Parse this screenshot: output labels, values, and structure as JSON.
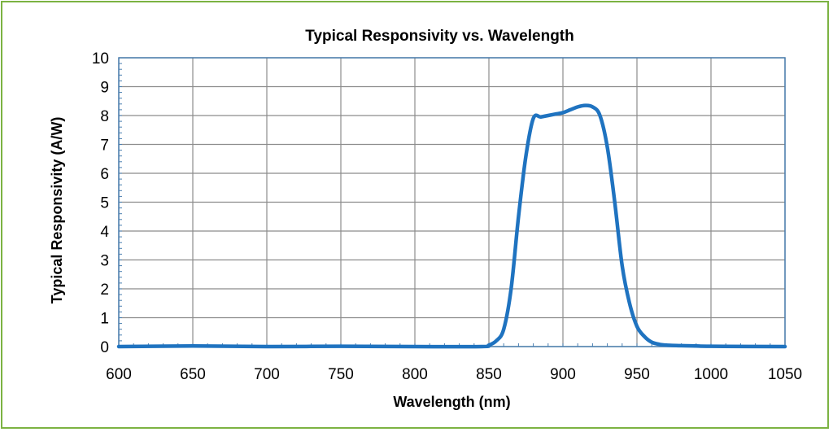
{
  "chart_data": {
    "type": "line",
    "title": "Typical Responsivity vs. Wavelength",
    "xlabel": "Wavelength (nm)",
    "ylabel": "Typical Responsivity (A/W)",
    "xlim": [
      600,
      1050
    ],
    "ylim": [
      0,
      10
    ],
    "x_ticks": [
      "600",
      "650",
      "700",
      "750",
      "800",
      "850",
      "900",
      "950",
      "1000",
      "1050"
    ],
    "y_ticks": [
      "0",
      "1",
      "2",
      "3",
      "4",
      "5",
      "6",
      "7",
      "8",
      "9",
      "10"
    ],
    "grid": true,
    "legend": "none",
    "series": [
      {
        "color": "#1f73c0",
        "x": [
          600,
          650,
          700,
          750,
          800,
          845,
          850,
          855,
          860,
          865,
          870,
          875,
          880,
          885,
          890,
          895,
          900,
          905,
          910,
          915,
          920,
          925,
          930,
          935,
          940,
          945,
          950,
          955,
          960,
          965,
          970,
          980,
          990,
          1000,
          1050
        ],
        "y": [
          0.0,
          0.02,
          0.0,
          0.01,
          0.0,
          0.0,
          0.05,
          0.2,
          0.6,
          2.0,
          4.5,
          6.6,
          7.9,
          7.95,
          8.0,
          8.05,
          8.1,
          8.2,
          8.3,
          8.35,
          8.3,
          8.0,
          6.9,
          5.0,
          2.8,
          1.5,
          0.7,
          0.35,
          0.15,
          0.08,
          0.05,
          0.03,
          0.02,
          0.01,
          0.0
        ]
      }
    ]
  }
}
